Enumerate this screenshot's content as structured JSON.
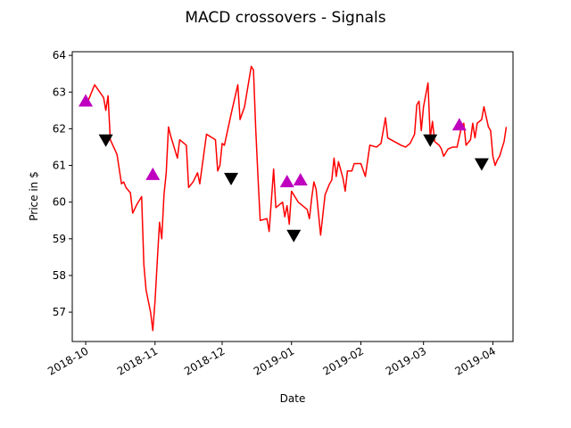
{
  "colors": {
    "price_line": "#ff0000",
    "buy_marker": "#bf00bf",
    "sell_marker": "#000000"
  },
  "chart_data": {
    "type": "line",
    "title": "MACD crossovers - Signals",
    "xlabel": "Date",
    "ylabel": "Price in $",
    "grid": false,
    "xlim": [
      "2018-09-25",
      "2019-04-10"
    ],
    "ylim": [
      56.2,
      64.1
    ],
    "x_ticks": [
      {
        "date": "2018-10-01",
        "label": "2018-10"
      },
      {
        "date": "2018-11-01",
        "label": "2018-11"
      },
      {
        "date": "2018-12-01",
        "label": "2018-12"
      },
      {
        "date": "2019-01-01",
        "label": "2019-01"
      },
      {
        "date": "2019-02-01",
        "label": "2019-02"
      },
      {
        "date": "2019-03-01",
        "label": "2019-03"
      },
      {
        "date": "2019-04-01",
        "label": "2019-04"
      }
    ],
    "y_ticks": [
      57,
      58,
      59,
      60,
      61,
      62,
      63,
      64
    ],
    "series": [
      {
        "marker": "line",
        "points": [
          [
            "2018-10-02",
            62.75
          ],
          [
            "2018-10-05",
            63.2
          ],
          [
            "2018-10-09",
            62.85
          ],
          [
            "2018-10-10",
            62.5
          ],
          [
            "2018-10-11",
            62.9
          ],
          [
            "2018-10-12",
            61.7
          ],
          [
            "2018-10-15",
            61.3
          ],
          [
            "2018-10-17",
            60.5
          ],
          [
            "2018-10-18",
            60.55
          ],
          [
            "2018-10-19",
            60.4
          ],
          [
            "2018-10-21",
            60.25
          ],
          [
            "2018-10-22",
            59.7
          ],
          [
            "2018-10-24",
            59.95
          ],
          [
            "2018-10-26",
            60.15
          ],
          [
            "2018-10-27",
            58.3
          ],
          [
            "2018-10-28",
            57.6
          ],
          [
            "2018-10-30",
            57.0
          ],
          [
            "2018-10-31",
            56.5
          ],
          [
            "2018-11-01",
            57.3
          ],
          [
            "2018-11-02",
            58.4
          ],
          [
            "2018-11-03",
            59.45
          ],
          [
            "2018-11-04",
            59.0
          ],
          [
            "2018-11-05",
            60.2
          ],
          [
            "2018-11-06",
            60.8
          ],
          [
            "2018-11-07",
            62.05
          ],
          [
            "2018-11-08",
            61.8
          ],
          [
            "2018-11-11",
            61.2
          ],
          [
            "2018-11-12",
            61.7
          ],
          [
            "2018-11-15",
            61.55
          ],
          [
            "2018-11-16",
            60.4
          ],
          [
            "2018-11-18",
            60.55
          ],
          [
            "2018-11-20",
            60.8
          ],
          [
            "2018-11-21",
            60.5
          ],
          [
            "2018-11-24",
            61.85
          ],
          [
            "2018-11-28",
            61.7
          ],
          [
            "2018-11-29",
            60.85
          ],
          [
            "2018-11-30",
            61.0
          ],
          [
            "2018-12-01",
            61.6
          ],
          [
            "2018-12-02",
            61.55
          ],
          [
            "2018-12-05",
            62.4
          ],
          [
            "2018-12-08",
            63.2
          ],
          [
            "2018-12-09",
            62.25
          ],
          [
            "2018-12-11",
            62.6
          ],
          [
            "2018-12-14",
            63.7
          ],
          [
            "2018-12-15",
            63.6
          ],
          [
            "2018-12-16",
            62.0
          ],
          [
            "2018-12-17",
            60.7
          ],
          [
            "2018-12-18",
            59.5
          ],
          [
            "2018-12-21",
            59.55
          ],
          [
            "2018-12-22",
            59.2
          ],
          [
            "2018-12-24",
            60.9
          ],
          [
            "2018-12-25",
            59.85
          ],
          [
            "2018-12-28",
            60.0
          ],
          [
            "2018-12-29",
            59.6
          ],
          [
            "2018-12-30",
            59.9
          ],
          [
            "2018-12-31",
            59.4
          ],
          [
            "2019-01-01",
            60.3
          ],
          [
            "2019-01-04",
            60.0
          ],
          [
            "2019-01-06",
            59.9
          ],
          [
            "2019-01-08",
            59.8
          ],
          [
            "2019-01-09",
            59.55
          ],
          [
            "2019-01-10",
            60.1
          ],
          [
            "2019-01-11",
            60.55
          ],
          [
            "2019-01-12",
            60.35
          ],
          [
            "2019-01-14",
            59.1
          ],
          [
            "2019-01-16",
            60.2
          ],
          [
            "2019-01-18",
            60.5
          ],
          [
            "2019-01-19",
            60.6
          ],
          [
            "2019-01-20",
            61.2
          ],
          [
            "2019-01-21",
            60.7
          ],
          [
            "2019-01-22",
            61.1
          ],
          [
            "2019-01-24",
            60.65
          ],
          [
            "2019-01-25",
            60.3
          ],
          [
            "2019-01-26",
            60.85
          ],
          [
            "2019-01-28",
            60.85
          ],
          [
            "2019-01-29",
            61.05
          ],
          [
            "2019-02-01",
            61.05
          ],
          [
            "2019-02-03",
            60.7
          ],
          [
            "2019-02-05",
            61.55
          ],
          [
            "2019-02-08",
            61.5
          ],
          [
            "2019-02-10",
            61.6
          ],
          [
            "2019-02-12",
            62.3
          ],
          [
            "2019-02-13",
            61.75
          ],
          [
            "2019-02-16",
            61.65
          ],
          [
            "2019-02-19",
            61.55
          ],
          [
            "2019-02-21",
            61.5
          ],
          [
            "2019-02-23",
            61.6
          ],
          [
            "2019-02-25",
            61.85
          ],
          [
            "2019-02-26",
            62.65
          ],
          [
            "2019-02-27",
            62.75
          ],
          [
            "2019-02-28",
            61.95
          ],
          [
            "2019-03-01",
            62.6
          ],
          [
            "2019-03-03",
            63.25
          ],
          [
            "2019-03-04",
            61.75
          ],
          [
            "2019-03-05",
            62.2
          ],
          [
            "2019-03-06",
            61.65
          ],
          [
            "2019-03-08",
            61.55
          ],
          [
            "2019-03-09",
            61.45
          ],
          [
            "2019-03-10",
            61.25
          ],
          [
            "2019-03-12",
            61.45
          ],
          [
            "2019-03-14",
            61.5
          ],
          [
            "2019-03-16",
            61.5
          ],
          [
            "2019-03-18",
            62.05
          ],
          [
            "2019-03-19",
            62.15
          ],
          [
            "2019-03-20",
            61.55
          ],
          [
            "2019-03-22",
            61.7
          ],
          [
            "2019-03-23",
            62.15
          ],
          [
            "2019-03-24",
            61.75
          ],
          [
            "2019-03-25",
            62.15
          ],
          [
            "2019-03-27",
            62.25
          ],
          [
            "2019-03-28",
            62.6
          ],
          [
            "2019-03-30",
            62.05
          ],
          [
            "2019-03-31",
            61.95
          ],
          [
            "2019-04-01",
            61.25
          ],
          [
            "2019-04-02",
            61.0
          ],
          [
            "2019-04-03",
            61.15
          ],
          [
            "2019-04-04",
            61.25
          ],
          [
            "2019-04-06",
            61.65
          ],
          [
            "2019-04-07",
            62.05
          ]
        ]
      },
      {
        "marker": "triangle-up",
        "points": [
          [
            "2018-10-01",
            62.75
          ],
          [
            "2018-10-31",
            60.75
          ],
          [
            "2018-12-30",
            60.55
          ],
          [
            "2019-01-05",
            60.6
          ],
          [
            "2019-03-17",
            62.1
          ]
        ]
      },
      {
        "marker": "triangle-down",
        "points": [
          [
            "2018-10-10",
            61.7
          ],
          [
            "2018-12-05",
            60.65
          ],
          [
            "2019-01-02",
            59.1
          ],
          [
            "2019-03-04",
            61.7
          ],
          [
            "2019-03-27",
            61.05
          ]
        ]
      }
    ]
  }
}
